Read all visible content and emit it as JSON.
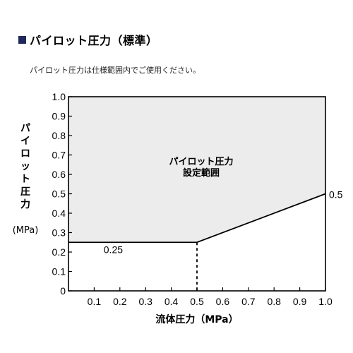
{
  "header": {
    "title": "パイロット圧力（標準）",
    "note": "パイロット圧力は仕様範囲内でご使用ください。"
  },
  "chart_data": {
    "type": "area",
    "title": "パイロット圧力（標準）",
    "xlabel": "流体圧力（MPa）",
    "ylabel": "パイロット圧力",
    "ylabel_unit": "(MPa)",
    "xlim": [
      0,
      1.0
    ],
    "ylim": [
      0,
      1.0
    ],
    "x_ticks": [
      "0.1",
      "0.2",
      "0.3",
      "0.4",
      "0.5",
      "0.6",
      "0.7",
      "0.8",
      "0.9",
      "1.0"
    ],
    "y_ticks": [
      "0",
      "0.1",
      "0.2",
      "0.3",
      "0.4",
      "0.5",
      "0.6",
      "0.7",
      "0.8",
      "0.9",
      "1.0"
    ],
    "grid": false,
    "series": [
      {
        "name": "パイロット圧力 設定範囲",
        "x": [
          0,
          0.5,
          1.0
        ],
        "y": [
          0.25,
          0.25,
          0.5
        ]
      }
    ],
    "region_label": [
      "パイロット圧力",
      "設定範囲"
    ],
    "annotations": [
      {
        "text": "0.25",
        "x": 0.1,
        "y": 0.25
      },
      {
        "text": "0.5",
        "x": 1.0,
        "y": 0.5
      }
    ],
    "guide": {
      "x": 0.5,
      "y_from": 0,
      "y_to": 0.25,
      "style": "dashed"
    },
    "colors": {
      "fill": "#ececec",
      "line": "#000000"
    }
  }
}
